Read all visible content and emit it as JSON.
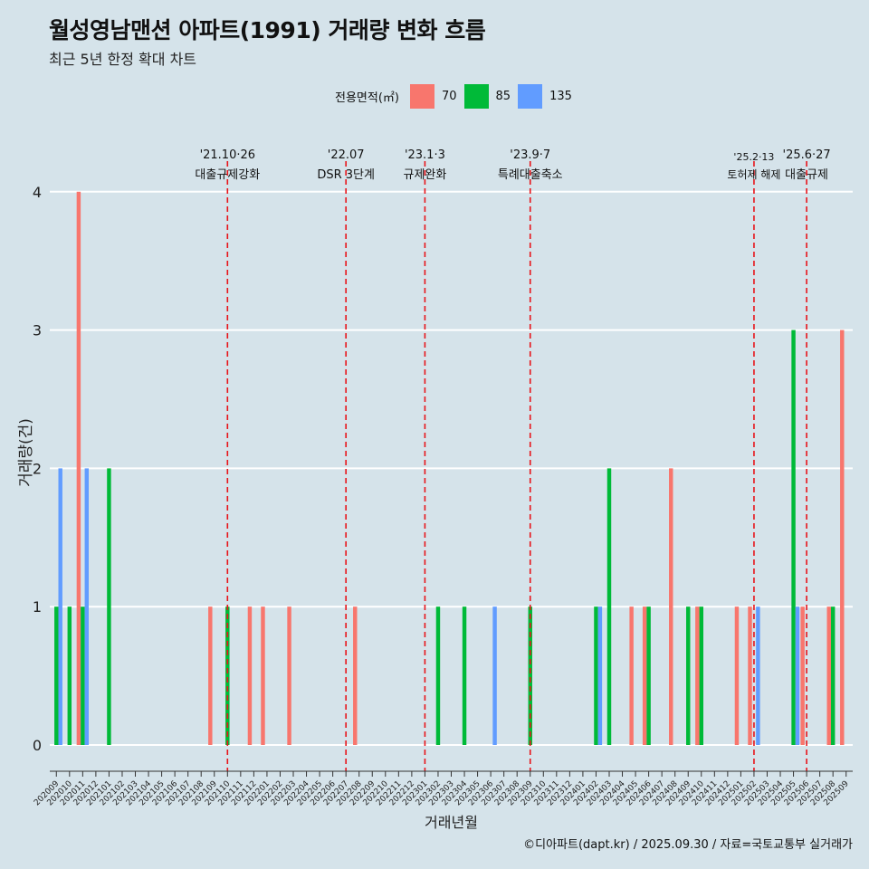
{
  "title": "월성영남맨션 아파트(1991) 거래량 변화 흐름",
  "subtitle": "최근 5년 한정 확대 차트",
  "caption": "©디아파트(dapt.kr) / 2025.09.30 / 자료=국토교통부 실거래가",
  "legend": {
    "title": "전용면적(㎡)",
    "items": [
      {
        "label": "70",
        "color": "#f8766d"
      },
      {
        "label": "85",
        "color": "#00ba38"
      },
      {
        "label": "135",
        "color": "#619cff"
      }
    ]
  },
  "chart_data": {
    "type": "bar",
    "title": "월성영남맨션 아파트(1991) 거래량 변화 흐름",
    "xlabel": "거래년월",
    "ylabel": "거래량(건)",
    "ylim": [
      0,
      4
    ],
    "yticks": [
      0,
      1,
      2,
      3,
      4
    ],
    "categories": [
      "202009",
      "202010",
      "202011",
      "202012",
      "202101",
      "202102",
      "202103",
      "202104",
      "202105",
      "202106",
      "202107",
      "202108",
      "202109",
      "202110",
      "202111",
      "202112",
      "202201",
      "202202",
      "202203",
      "202204",
      "202205",
      "202206",
      "202207",
      "202208",
      "202209",
      "202210",
      "202211",
      "202212",
      "202301",
      "202302",
      "202303",
      "202304",
      "202305",
      "202306",
      "202307",
      "202308",
      "202309",
      "202310",
      "202311",
      "202312",
      "202401",
      "202402",
      "202403",
      "202404",
      "202405",
      "202406",
      "202407",
      "202408",
      "202409",
      "202410",
      "202411",
      "202412",
      "202501",
      "202502",
      "202503",
      "202504",
      "202505",
      "202506",
      "202507",
      "202508",
      "202509"
    ],
    "series": [
      {
        "name": "70",
        "color": "#f8766d",
        "values": [
          0,
          0,
          4,
          0,
          0,
          0,
          0,
          0,
          0,
          0,
          0,
          0,
          1,
          0,
          0,
          1,
          1,
          0,
          1,
          0,
          0,
          0,
          0,
          1,
          0,
          0,
          0,
          0,
          0,
          0,
          0,
          0,
          0,
          0,
          0,
          0,
          0,
          0,
          0,
          0,
          0,
          0,
          0,
          0,
          1,
          1,
          0,
          2,
          0,
          1,
          0,
          0,
          1,
          1,
          0,
          0,
          0,
          1,
          0,
          1,
          3
        ]
      },
      {
        "name": "85",
        "color": "#00ba38",
        "values": [
          1,
          1,
          1,
          0,
          2,
          0,
          0,
          0,
          0,
          0,
          0,
          0,
          0,
          1,
          0,
          0,
          0,
          0,
          0,
          0,
          0,
          0,
          0,
          0,
          0,
          0,
          0,
          0,
          0,
          1,
          0,
          1,
          0,
          0,
          0,
          0,
          1,
          0,
          0,
          0,
          0,
          1,
          2,
          0,
          0,
          1,
          0,
          0,
          1,
          1,
          0,
          0,
          0,
          0,
          0,
          0,
          3,
          0,
          0,
          1,
          0
        ]
      },
      {
        "name": "135",
        "color": "#619cff",
        "values": [
          2,
          0,
          2,
          0,
          0,
          0,
          0,
          0,
          0,
          0,
          0,
          0,
          0,
          0,
          0,
          0,
          0,
          0,
          0,
          0,
          0,
          0,
          0,
          0,
          0,
          0,
          0,
          0,
          0,
          0,
          0,
          0,
          0,
          1,
          0,
          0,
          0,
          0,
          0,
          0,
          0,
          1,
          0,
          0,
          0,
          0,
          0,
          0,
          0,
          0,
          0,
          0,
          0,
          1,
          0,
          0,
          1,
          0,
          0,
          0,
          0
        ]
      }
    ],
    "events": [
      {
        "month": "202110",
        "date": "'21.10·26",
        "label": "대출규제강화"
      },
      {
        "month": "202207",
        "date": "'22.07",
        "label": "DSR 3단계"
      },
      {
        "month": "202301",
        "date": "'23.1·3",
        "label": "규제완화"
      },
      {
        "month": "202309",
        "date": "'23.9·7",
        "label": "특례대출축소"
      },
      {
        "month": "202502",
        "date": "'25.2·13",
        "label": "토허제 해제"
      },
      {
        "month": "202506",
        "date": "'25.6·27",
        "label": "대출규제"
      }
    ]
  }
}
